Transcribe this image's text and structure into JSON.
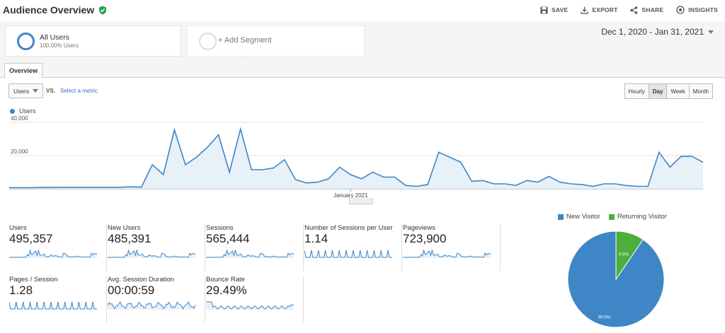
{
  "header": {
    "title": "Audience Overview",
    "actions": {
      "save": "SAVE",
      "export": "EXPORT",
      "share": "SHARE",
      "insights": "INSIGHTS"
    }
  },
  "segments": {
    "primary": {
      "name": "All Users",
      "sub": "100.00% Users"
    },
    "add": "+ Add Segment"
  },
  "date_range": "Dec 1, 2020 - Jan 31, 2021",
  "tabs": {
    "overview": "Overview"
  },
  "controls": {
    "metric": "Users",
    "vs": "VS.",
    "select_metric": "Select a metric",
    "granularity": [
      "Hourly",
      "Day",
      "Week",
      "Month"
    ],
    "active_granularity": "Day"
  },
  "chart_legend": "Users",
  "colors": {
    "accent": "#3e86c6",
    "new_visitor": "#3e86c6",
    "returning_visitor": "#4caf3d",
    "verified": "#2e9e4f"
  },
  "chart_data": [
    {
      "type": "line",
      "series_name": "Users",
      "ylim": [
        0,
        40000
      ],
      "yticks": [
        "40,000",
        "20,000"
      ],
      "xtick_label": "January 2021",
      "xtick_index": 31,
      "values": [
        700,
        700,
        700,
        800,
        800,
        900,
        900,
        900,
        900,
        900,
        900,
        1200,
        1000,
        14500,
        8500,
        35500,
        14500,
        19000,
        25000,
        32500,
        10000,
        36000,
        11500,
        11500,
        12500,
        17500,
        5500,
        3500,
        4000,
        6000,
        13000,
        8500,
        6000,
        10000,
        7000,
        7000,
        2000,
        1500,
        2500,
        22000,
        19000,
        16000,
        4500,
        5000,
        3000,
        3000,
        2000,
        5000,
        4000,
        7500,
        4000,
        3000,
        2500,
        1500,
        3000,
        3000,
        2000,
        1500,
        1500,
        22000,
        13000,
        19500,
        19500,
        16000
      ]
    },
    {
      "type": "pie",
      "slices": [
        {
          "name": "New Visitor",
          "value": 90.5,
          "label": "90.5%"
        },
        {
          "name": "Returning Visitor",
          "value": 9.5,
          "label": "9.5%"
        }
      ]
    }
  ],
  "scorecards": [
    {
      "label": "Users",
      "value": "495,357"
    },
    {
      "label": "New Users",
      "value": "485,391"
    },
    {
      "label": "Sessions",
      "value": "565,444"
    },
    {
      "label": "Number of Sessions per User",
      "value": "1.14"
    },
    {
      "label": "Pageviews",
      "value": "723,900"
    },
    {
      "label": "Pages / Session",
      "value": "1.28"
    },
    {
      "label": "Avg. Session Duration",
      "value": "00:00:59"
    },
    {
      "label": "Bounce Rate",
      "value": "29.49%"
    }
  ]
}
